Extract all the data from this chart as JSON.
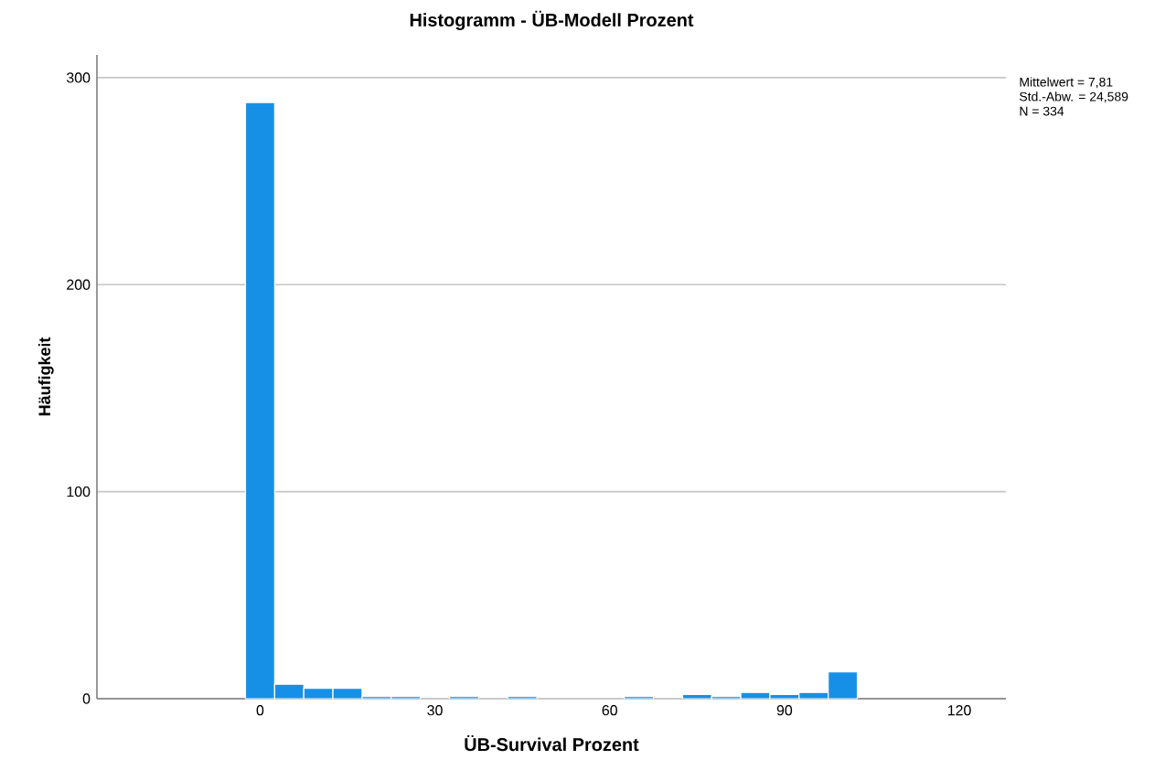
{
  "chart_data": {
    "type": "histogram",
    "title": "Histogramm - ÜB-Modell Prozent",
    "xlabel": "ÜB-Survival Prozent",
    "ylabel": "Häufigkeit",
    "bins": [
      -2.5,
      2.5,
      7.5,
      12.5,
      17.5,
      22.5,
      27.5,
      32.5,
      37.5,
      42.5,
      47.5,
      52.5,
      57.5,
      62.5,
      67.5,
      72.5,
      77.5,
      82.5,
      87.5,
      92.5,
      97.5,
      102.5
    ],
    "values": [
      288,
      7,
      5,
      5,
      1,
      1,
      0,
      1,
      0,
      1,
      0,
      0,
      0,
      1,
      0,
      2,
      1,
      3,
      2,
      3,
      13
    ],
    "color": "#1590e6",
    "xlim": [
      -28,
      128
    ],
    "ylim": [
      0,
      311
    ],
    "xticks": [
      0,
      30,
      60,
      90,
      120
    ],
    "yticks": [
      0,
      100,
      200,
      300
    ],
    "grid": "y",
    "annotations": [
      "Mittelwert = 7,81",
      "Std.-Abw. = 24,589",
      "N = 334"
    ]
  }
}
